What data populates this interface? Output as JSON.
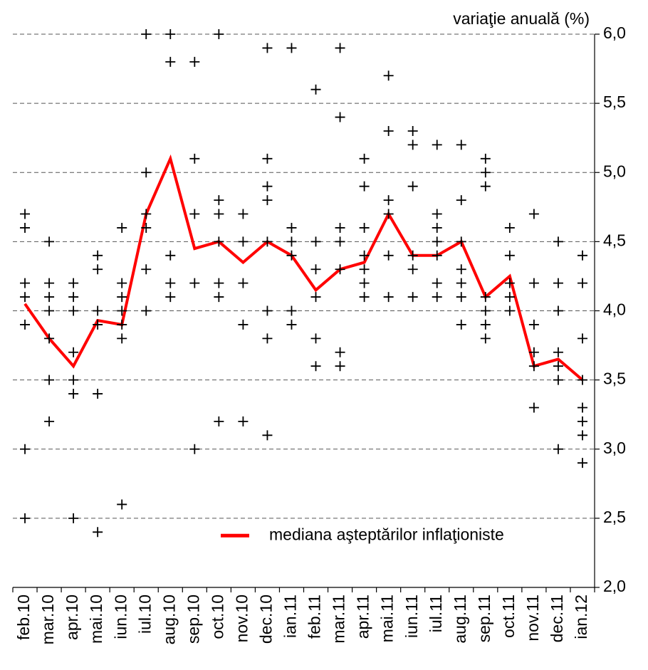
{
  "chart_data": {
    "type": "line",
    "y_axis_label": "variaţie anuală (%)",
    "categories": [
      "feb.10",
      "mar.10",
      "apr.10",
      "mai.10",
      "iun.10",
      "iul.10",
      "aug.10",
      "sep.10",
      "oct.10",
      "nov.10",
      "dec.10",
      "ian.11",
      "feb.11",
      "mar.11",
      "apr.11",
      "mai.11",
      "iun.11",
      "iul.11",
      "aug.11",
      "sep.11",
      "oct.11",
      "nov.11",
      "dec.11",
      "ian.12"
    ],
    "series": [
      {
        "name": "mediana aşteptărilor inflaţioniste",
        "color": "#ff0000",
        "values": [
          4.05,
          3.8,
          3.6,
          3.93,
          3.9,
          4.7,
          5.1,
          4.45,
          4.5,
          4.35,
          4.5,
          4.4,
          4.15,
          4.3,
          4.35,
          4.7,
          4.4,
          4.4,
          4.5,
          4.1,
          4.25,
          3.6,
          3.65,
          3.5
        ]
      }
    ],
    "points": [
      [
        4.7,
        4.6,
        4.2,
        4.1,
        3.9,
        3.0,
        2.5
      ],
      [
        4.5,
        4.2,
        4.1,
        4.0,
        3.8,
        3.5,
        3.2
      ],
      [
        4.2,
        4.1,
        4.0,
        3.7,
        3.5,
        3.4,
        2.5
      ],
      [
        4.4,
        4.3,
        4.0,
        3.9,
        3.4,
        2.4
      ],
      [
        4.6,
        4.2,
        4.1,
        4.0,
        3.9,
        3.8,
        2.6
      ],
      [
        6.0,
        5.0,
        4.7,
        4.6,
        4.3,
        4.0
      ],
      [
        6.0,
        5.8,
        4.4,
        4.2,
        4.1
      ],
      [
        5.8,
        5.1,
        4.7,
        4.2,
        3.0
      ],
      [
        6.0,
        4.8,
        4.7,
        4.5,
        4.2,
        4.1,
        3.2
      ],
      [
        4.7,
        4.5,
        4.2,
        3.9,
        3.2
      ],
      [
        5.9,
        5.1,
        4.9,
        4.8,
        4.5,
        4.0,
        3.8,
        3.1
      ],
      [
        5.9,
        4.6,
        4.5,
        4.4,
        4.0,
        3.9
      ],
      [
        5.6,
        4.5,
        4.3,
        4.1,
        3.8,
        3.6
      ],
      [
        5.9,
        5.4,
        4.6,
        4.5,
        4.3,
        3.7,
        3.6
      ],
      [
        5.1,
        4.9,
        4.6,
        4.4,
        4.3,
        4.2,
        4.1
      ],
      [
        5.7,
        5.3,
        4.8,
        4.7,
        4.4,
        4.1
      ],
      [
        5.3,
        5.2,
        4.9,
        4.4,
        4.3,
        4.1
      ],
      [
        5.2,
        4.7,
        4.6,
        4.5,
        4.4,
        4.2,
        4.1
      ],
      [
        5.2,
        4.8,
        4.5,
        4.3,
        4.2,
        4.1,
        3.9
      ],
      [
        5.1,
        5.0,
        4.9,
        4.1,
        4.0,
        3.9,
        3.8
      ],
      [
        4.6,
        4.4,
        4.2,
        4.1,
        4.0
      ],
      [
        4.7,
        4.2,
        3.9,
        3.7,
        3.6,
        3.3
      ],
      [
        4.5,
        4.2,
        4.0,
        3.7,
        3.6,
        3.5,
        3.0
      ],
      [
        4.4,
        4.2,
        3.8,
        3.5,
        3.3,
        3.2,
        3.1,
        2.9
      ]
    ],
    "point_color": "#000000",
    "ylim": [
      2.0,
      6.0
    ],
    "yticks": [
      {
        "value": 2.0,
        "label": "2,0"
      },
      {
        "value": 2.5,
        "label": "2,5"
      },
      {
        "value": 3.0,
        "label": "3,0"
      },
      {
        "value": 3.5,
        "label": "3,5"
      },
      {
        "value": 4.0,
        "label": "4,0"
      },
      {
        "value": 4.5,
        "label": "4,5"
      },
      {
        "value": 5.0,
        "label": "5,0"
      },
      {
        "value": 5.5,
        "label": "5,5"
      },
      {
        "value": 6.0,
        "label": "6,0"
      }
    ],
    "y_axis_position": "right",
    "grid": true,
    "legend": "lower right"
  }
}
